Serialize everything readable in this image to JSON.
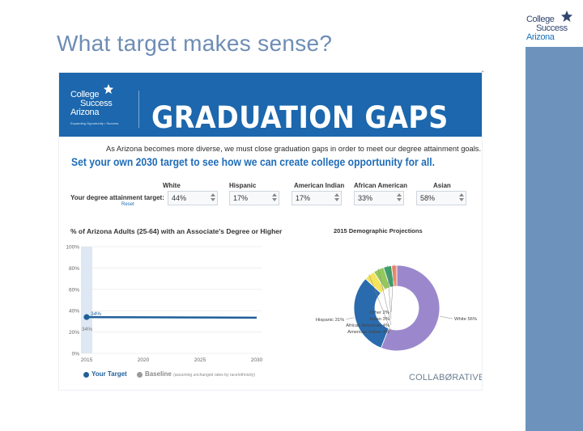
{
  "slide": {
    "title": "What target makes sense?",
    "logo": {
      "line1": "College",
      "line2": "Success",
      "line3": "Arizona"
    },
    "colors": {
      "title": "#6e8db5",
      "side_bar": "#6d93bc"
    }
  },
  "screenshot": {
    "banner": {
      "logo": {
        "line1": "College",
        "line2": "Success",
        "line3": "Arizona",
        "tagline": "Expanding Opportunity • Success"
      },
      "title": "GRADUATION GAPS",
      "color": "#1c67ad"
    },
    "intro": "As Arizona becomes more diverse, we must close graduation gaps in order to meet our degree attainment goals.",
    "cta": "Set your own 2030 target to see how we can create college opportunity for all.",
    "targets": {
      "label": "Your degree attainment target:",
      "reset": "Reset",
      "groups": [
        {
          "name": "White",
          "value": "44%"
        },
        {
          "name": "Hispanic",
          "value": "17%"
        },
        {
          "name": "American Indian",
          "value": "17%"
        },
        {
          "name": "African American",
          "value": "33%"
        },
        {
          "name": "Asian",
          "value": "58%"
        }
      ]
    },
    "legend": {
      "target": "Your Target",
      "baseline": "Baseline",
      "baseline_note": "(assuming unchanged rates by race/ethnicity)"
    },
    "footer_brand": "COLLABØRATIVE"
  },
  "chart_data": [
    {
      "type": "line",
      "title": "% of Arizona Adults (25-64) with an Associate's Degree or Higher",
      "x": [
        2015,
        2020,
        2025,
        2030
      ],
      "xticks": [
        "2015",
        "2020",
        "2025",
        "2030"
      ],
      "yticks": [
        "0%",
        "20%",
        "40%",
        "60%",
        "80%",
        "100%"
      ],
      "ylim": [
        0,
        100
      ],
      "series": [
        {
          "name": "Your Target",
          "values": [
            34,
            33.8,
            33.6,
            33.4
          ],
          "color": "#1f5f99"
        },
        {
          "name": "Baseline",
          "values": [
            34,
            33.8,
            33.6,
            33.4
          ],
          "color": "#9a9a9a"
        }
      ],
      "point_labels": [
        "34%",
        "34%"
      ],
      "highlight_band": "2015"
    },
    {
      "type": "pie",
      "title": "2015 Demographic Projections",
      "slices": [
        {
          "label": "White 56%",
          "value": 56,
          "color": "#9b88cc"
        },
        {
          "label": "Hispanic 31%",
          "value": 31,
          "color": "#2a6bad"
        },
        {
          "label": "American Indian 4%",
          "value": 4,
          "color": "#f4e45c"
        },
        {
          "label": "African American 4%",
          "value": 4,
          "color": "#94c85c"
        },
        {
          "label": "Asian 3%",
          "value": 3,
          "color": "#3c9c6a"
        },
        {
          "label": "Other 2%",
          "value": 2,
          "color": "#ee8a6c"
        }
      ],
      "donut": true
    }
  ]
}
